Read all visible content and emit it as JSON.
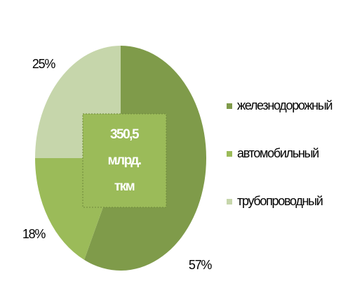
{
  "chart_data": {
    "type": "pie",
    "categories": [
      "железнодорожный",
      "автомобильный",
      "трубопроводный"
    ],
    "values": [
      57,
      18,
      25
    ],
    "value_labels": [
      "57%",
      "18%",
      "25%"
    ],
    "colors": [
      "#7f9b4a",
      "#9bbb59",
      "#c6d6ab"
    ],
    "center_label": [
      "350,5",
      "млрд.",
      "ткм"
    ],
    "legend": "right"
  }
}
